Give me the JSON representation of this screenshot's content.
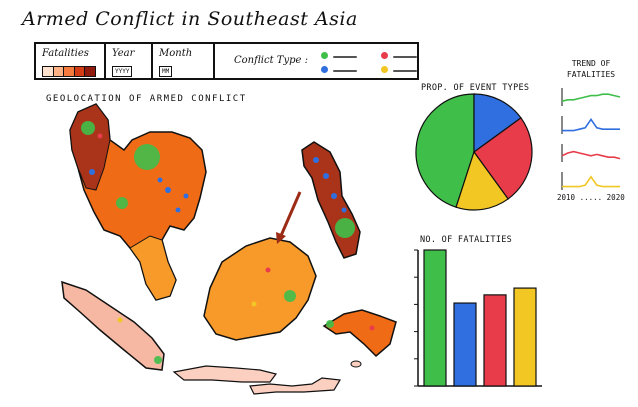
{
  "title": "Armed Conflict in Southeast Asia",
  "filters": {
    "fatalities_label": "Fatalities",
    "fatality_ramp": [
      "#ffe3cf",
      "#ffb285",
      "#f57a3d",
      "#d43c15",
      "#8f1a0d"
    ],
    "year_label": "Year",
    "year_value": "YYYY",
    "month_label": "Month",
    "month_value": "MM",
    "conflict_type_label": "Conflict Type :"
  },
  "conflict_types": [
    {
      "color": "#3fbf4a"
    },
    {
      "color": "#2f6fe0"
    },
    {
      "color": "#e83c4a"
    },
    {
      "color": "#f2c623"
    }
  ],
  "map": {
    "label": "GEOLOCATION OF ARMED CONFLICT",
    "colors": {
      "high": "#a93419",
      "mid": "#f06b16",
      "mid2": "#f79a2a",
      "low": "#f6b8a2",
      "light": "#fcd0c0"
    }
  },
  "pie": {
    "label": "PROP. OF EVENT TYPES"
  },
  "trend": {
    "label": "TREND OF FATALITIES",
    "axis_text": "2010 ..... 2020"
  },
  "bars": {
    "label": "NO. OF FATALITIES"
  },
  "chart_data": [
    {
      "type": "pie",
      "title": "PROP. OF EVENT TYPES",
      "slices": [
        {
          "color": "#3fbf4a",
          "value": 45
        },
        {
          "color": "#2f6fe0",
          "value": 15
        },
        {
          "color": "#e83c4a",
          "value": 25
        },
        {
          "color": "#f2c623",
          "value": 15
        }
      ]
    },
    {
      "type": "bar",
      "title": "NO. OF FATALITIES",
      "values": [
        100,
        61,
        67,
        72
      ],
      "colors": [
        "#3fbf4a",
        "#2f6fe0",
        "#e83c4a",
        "#f2c623"
      ],
      "ylim": [
        0,
        100
      ]
    },
    {
      "type": "line",
      "title": "TREND OF FATALITIES",
      "series": [
        {
          "color": "#3fbf4a",
          "values": [
            2,
            3,
            3,
            4,
            5,
            6,
            6,
            7,
            7,
            6,
            5
          ]
        },
        {
          "color": "#2f6fe0",
          "values": [
            1,
            1,
            1,
            2,
            3,
            9,
            3,
            2,
            2,
            2,
            2
          ]
        },
        {
          "color": "#e83c4a",
          "values": [
            3,
            5,
            6,
            5,
            4,
            3,
            4,
            3,
            2,
            2,
            1
          ]
        },
        {
          "color": "#f2c623",
          "values": [
            1,
            1,
            1,
            1,
            2,
            8,
            2,
            1,
            1,
            1,
            1
          ]
        }
      ]
    }
  ]
}
